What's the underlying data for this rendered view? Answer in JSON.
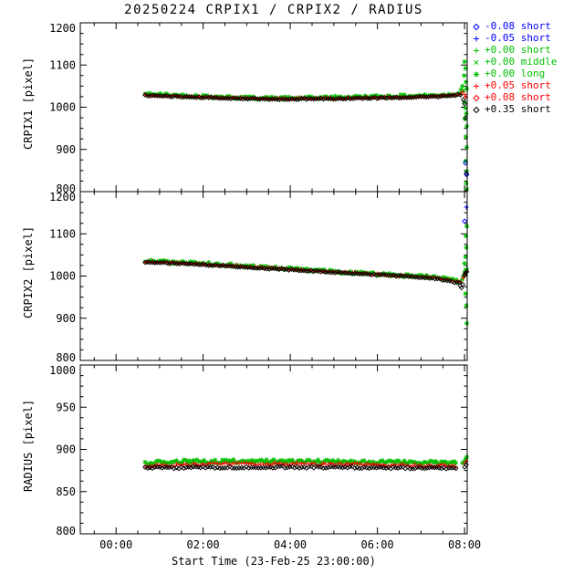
{
  "chart_data": {
    "type": "scatter",
    "title": "20250224 CRPIX1 / CRPIX2 / RADIUS",
    "xlabel": "Start Time (23-Feb-25 23:00:00)",
    "background": "#ffffff",
    "axis_color": "#000000",
    "grid": false,
    "x_domain": [
      -0.82,
      8.06
    ],
    "x_minor_step": 0.5,
    "xticks": [
      {
        "t": 0,
        "label": "00:00"
      },
      {
        "t": 2,
        "label": "02:00"
      },
      {
        "t": 4,
        "label": "04:00"
      },
      {
        "t": 6,
        "label": "06:00"
      },
      {
        "t": 8,
        "label": "08:00"
      }
    ],
    "panels": [
      {
        "name": "CRPIX1",
        "ylabel": "CRPIX1 [pixel]",
        "ylim": [
          800,
          1200
        ],
        "yticks": [
          800,
          900,
          1000,
          1100,
          1200
        ],
        "y_minor_step": 25,
        "series": [
          {
            "name": "offset +0.00",
            "marker": "star",
            "color": "#00c000",
            "size": 2.6,
            "n": 170,
            "jitter": 3.5,
            "trend": [
              [
                0.67,
                1031
              ],
              [
                1.2,
                1029
              ],
              [
                2.0,
                1026
              ],
              [
                3.0,
                1022
              ],
              [
                4.0,
                1021
              ],
              [
                5.0,
                1023
              ],
              [
                6.0,
                1025
              ],
              [
                7.0,
                1027
              ],
              [
                7.6,
                1029
              ],
              [
                7.9,
                1033
              ]
            ],
            "points": [
              [
                7.92,
                1042
              ],
              [
                7.95,
                1050
              ],
              [
                7.97,
                1038
              ],
              [
                8.0,
                1108
              ],
              [
                8.02,
                1092
              ],
              [
                7.99,
                1075
              ],
              [
                8.03,
                1060
              ],
              [
                8.05,
                1044
              ],
              [
                8.0,
                1012
              ],
              [
                8.02,
                998
              ],
              [
                8.04,
                985
              ],
              [
                8.01,
                972
              ],
              [
                8.05,
                955
              ],
              [
                8.03,
                930
              ],
              [
                8.05,
                905
              ],
              [
                8.02,
                872
              ],
              [
                8.05,
                848
              ],
              [
                8.04,
                820
              ],
              [
                8.05,
                806
              ]
            ]
          },
          {
            "name": "offset +0.05",
            "marker": "plus",
            "color": "#ff0000",
            "size": 2.4,
            "n": 130,
            "jitter": 1.8,
            "trend": [
              [
                0.67,
                1029
              ],
              [
                2.0,
                1024
              ],
              [
                3.5,
                1020
              ],
              [
                5.0,
                1021
              ],
              [
                6.5,
                1024
              ],
              [
                7.6,
                1027
              ],
              [
                7.9,
                1031
              ]
            ],
            "points": [
              [
                7.95,
                1036
              ],
              [
                8.0,
                1030
              ],
              [
                8.03,
                1024
              ]
            ]
          },
          {
            "name": "offset +0.35",
            "marker": "diamond",
            "color": "#000000",
            "size": 2.2,
            "n": 130,
            "jitter": 1.5,
            "trend": [
              [
                0.67,
                1028
              ],
              [
                2.0,
                1023
              ],
              [
                3.5,
                1019
              ],
              [
                5.0,
                1020
              ],
              [
                6.5,
                1023
              ],
              [
                7.6,
                1026
              ],
              [
                7.9,
                1030
              ]
            ],
            "points": [
              [
                7.97,
                1018
              ],
              [
                8.0,
                1008
              ],
              [
                8.02,
                975
              ],
              [
                8.04,
                843
              ],
              [
                8.05,
                800
              ]
            ]
          },
          {
            "name": "offset -0.08",
            "marker": "diamond",
            "color": "#0000ff",
            "size": 2.4,
            "points": [
              [
                8.02,
                868
              ],
              [
                8.05,
                840
              ]
            ]
          }
        ]
      },
      {
        "name": "CRPIX2",
        "ylabel": "CRPIX2 [pixel]",
        "ylim": [
          800,
          1200
        ],
        "yticks": [
          800,
          900,
          1000,
          1100,
          1200
        ],
        "y_minor_step": 25,
        "series": [
          {
            "name": "offset +0.00",
            "marker": "star",
            "color": "#00c000",
            "size": 2.6,
            "n": 170,
            "jitter": 3.5,
            "trend": [
              [
                0.67,
                1036
              ],
              [
                1.5,
                1032
              ],
              [
                2.5,
                1027
              ],
              [
                3.5,
                1020
              ],
              [
                4.5,
                1014
              ],
              [
                5.5,
                1008
              ],
              [
                6.5,
                1002
              ],
              [
                7.2,
                998
              ],
              [
                7.7,
                993
              ],
              [
                7.9,
                987
              ]
            ],
            "points": [
              [
                7.95,
                992
              ],
              [
                7.98,
                1000
              ],
              [
                8.0,
                1008
              ],
              [
                8.02,
                1014
              ],
              [
                8.05,
                1016
              ],
              [
                8.0,
                1030
              ],
              [
                8.02,
                1045
              ],
              [
                8.04,
                1068
              ],
              [
                8.03,
                1095
              ],
              [
                8.05,
                1118
              ],
              [
                8.02,
                958
              ],
              [
                8.04,
                930
              ],
              [
                8.05,
                888
              ]
            ]
          },
          {
            "name": "offset +0.05",
            "marker": "plus",
            "color": "#ff0000",
            "size": 2.4,
            "n": 130,
            "jitter": 1.8,
            "trend": [
              [
                0.67,
                1034
              ],
              [
                2.0,
                1028
              ],
              [
                3.5,
                1019
              ],
              [
                5.0,
                1010
              ],
              [
                6.5,
                1001
              ],
              [
                7.3,
                996
              ],
              [
                7.9,
                986
              ]
            ],
            "points": [
              [
                7.97,
                996
              ],
              [
                8.0,
                1004
              ],
              [
                8.03,
                1010
              ]
            ]
          },
          {
            "name": "offset +0.35",
            "marker": "diamond",
            "color": "#000000",
            "size": 2.2,
            "n": 130,
            "jitter": 1.5,
            "trend": [
              [
                0.67,
                1033
              ],
              [
                2.0,
                1027
              ],
              [
                3.5,
                1018
              ],
              [
                5.0,
                1009
              ],
              [
                6.5,
                1000
              ],
              [
                7.3,
                995
              ],
              [
                7.88,
                983
              ]
            ],
            "points": [
              [
                7.9,
                977
              ],
              [
                7.93,
                972
              ],
              [
                7.96,
                980
              ],
              [
                8.0,
                1002
              ],
              [
                8.02,
                1007
              ],
              [
                8.05,
                1010
              ]
            ]
          },
          {
            "name": "offset -0.08",
            "marker": "diamond",
            "color": "#0000ff",
            "size": 2.4,
            "points": [
              [
                8.0,
                1130
              ]
            ]
          },
          {
            "name": "offset -0.05",
            "marker": "plus",
            "color": "#0000ff",
            "size": 2.6,
            "points": [
              [
                8.04,
                1163
              ]
            ]
          }
        ]
      },
      {
        "name": "RADIUS",
        "ylabel": "RADIUS [pixel]",
        "ylim": [
          800,
          1000
        ],
        "yticks": [
          800,
          850,
          900,
          950,
          1000
        ],
        "y_minor_step": 12.5,
        "series": [
          {
            "name": "offset +0.00",
            "marker": "star",
            "color": "#00c000",
            "size": 2.6,
            "n": 170,
            "jitter": 2.2,
            "trend": [
              [
                0.67,
                884
              ],
              [
                1.5,
                885.5
              ],
              [
                3.0,
                886
              ],
              [
                4.5,
                885.5
              ],
              [
                6.0,
                885
              ],
              [
                7.0,
                884.5
              ],
              [
                7.8,
                883.5
              ]
            ],
            "points": [
              [
                7.95,
                884
              ],
              [
                8.0,
                886
              ],
              [
                8.03,
                889
              ],
              [
                8.05,
                891
              ]
            ]
          },
          {
            "name": "offset +0.05",
            "marker": "plus",
            "color": "#ff0000",
            "size": 2.4,
            "n": 130,
            "jitter": 1.4,
            "trend": [
              [
                0.67,
                881
              ],
              [
                2.0,
                882.5
              ],
              [
                4.0,
                883
              ],
              [
                6.0,
                882
              ],
              [
                7.8,
                880.5
              ]
            ],
            "points": [
              [
                8.0,
                883
              ],
              [
                8.04,
                886
              ]
            ]
          },
          {
            "name": "offset +0.35",
            "marker": "diamond",
            "color": "#000000",
            "size": 2.2,
            "n": 130,
            "jitter": 1.2,
            "trend": [
              [
                0.67,
                878
              ],
              [
                2.0,
                878.5
              ],
              [
                4.0,
                879
              ],
              [
                6.0,
                878.5
              ],
              [
                7.8,
                877.5
              ]
            ],
            "points": [
              [
                8.0,
                879
              ],
              [
                8.04,
                882
              ]
            ]
          }
        ]
      }
    ],
    "legend": {
      "entries": [
        {
          "marker": "diamond",
          "label": "-0.08 short",
          "color": "#0000ff"
        },
        {
          "marker": "plus",
          "label": "-0.05 short",
          "color": "#0000ff"
        },
        {
          "marker": "plus",
          "label": "+0.00 short",
          "color": "#00c000"
        },
        {
          "marker": "cross",
          "label": "+0.00 middle",
          "color": "#00c000"
        },
        {
          "marker": "star",
          "label": "+0.00 long",
          "color": "#00c000"
        },
        {
          "marker": "plus",
          "label": "+0.05 short",
          "color": "#ff0000"
        },
        {
          "marker": "diamond",
          "label": "+0.08 short",
          "color": "#ff0000"
        },
        {
          "marker": "diamond",
          "label": "+0.35 short",
          "color": "#000000"
        }
      ]
    }
  }
}
